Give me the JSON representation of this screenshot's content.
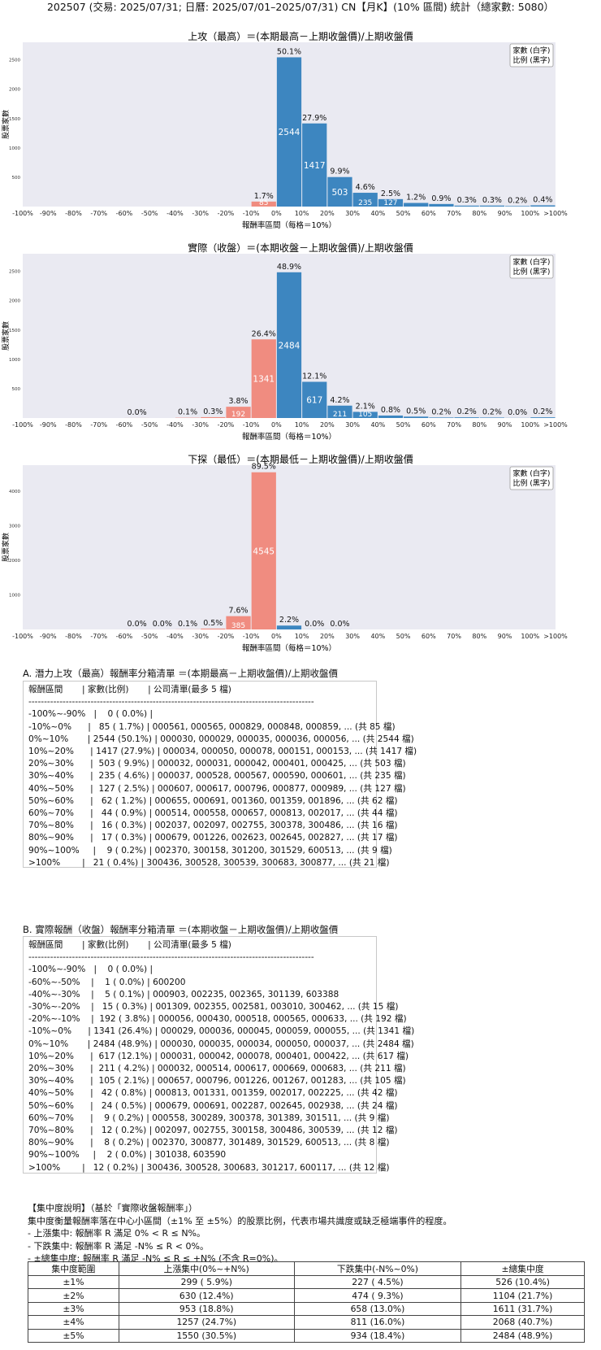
{
  "header": "202507 (交易: 2025/07/31; 日曆: 2025/07/01–2025/07/31) CN【月K】(10% 區間) 統計（總家數: 5080）",
  "bins": [
    "-100%",
    "-90%",
    "-80%",
    "-70%",
    "-60%",
    "-50%",
    "-40%",
    "-30%",
    "-20%",
    "-10%",
    "0%",
    "10%",
    "20%",
    "30%",
    "40%",
    "50%",
    "60%",
    "70%",
    "80%",
    "90%",
    "100%",
    ">100%"
  ],
  "chart_data": [
    {
      "type": "bar",
      "title": "上攻（最高）＝(本期最高－上期收盤價)/上期收盤價",
      "xlabel": "報酬率區間（每格＝10%）",
      "ylabel": "股票家數",
      "ylim": [
        0,
        2800
      ],
      "yticks": [
        500,
        1000,
        1500,
        2000,
        2500
      ],
      "legend": [
        "家數 (白字)",
        "比例 (黑字)"
      ],
      "legend_position": "top-right",
      "grid": false,
      "bars": [
        {
          "range": "-10%~0%",
          "count": 85,
          "pct": "1.7%",
          "color": "#f08c80"
        },
        {
          "range": "0%~10%",
          "count": 2544,
          "pct": "50.1%",
          "color": "#3d86c0"
        },
        {
          "range": "10%~20%",
          "count": 1417,
          "pct": "27.9%",
          "color": "#3d86c0"
        },
        {
          "range": "20%~30%",
          "count": 503,
          "pct": "9.9%",
          "color": "#3d86c0"
        },
        {
          "range": "30%~40%",
          "count": 235,
          "pct": "4.6%",
          "color": "#3d86c0"
        },
        {
          "range": "40%~50%",
          "count": 127,
          "pct": "2.5%",
          "color": "#3d86c0"
        },
        {
          "range": "50%~60%",
          "count": 62,
          "pct": "1.2%",
          "color": "#3d86c0"
        },
        {
          "range": "60%~70%",
          "count": 44,
          "pct": "0.9%",
          "color": "#3d86c0"
        },
        {
          "range": "70%~80%",
          "count": 16,
          "pct": "0.3%",
          "color": "#3d86c0"
        },
        {
          "range": "80%~90%",
          "count": 17,
          "pct": "0.3%",
          "color": "#3d86c0"
        },
        {
          "range": "90%~100%",
          "count": 9,
          "pct": "0.2%",
          "color": "#3d86c0"
        },
        {
          "range": ">100%",
          "count": 21,
          "pct": "0.4%",
          "color": "#3d86c0"
        }
      ]
    },
    {
      "type": "bar",
      "title": "實際（收盤）＝(本期收盤－上期收盤價)/上期收盤價",
      "xlabel": "報酬率區間（每格＝10%）",
      "ylabel": "股票家數",
      "ylim": [
        0,
        2800
      ],
      "yticks": [
        500,
        1000,
        1500,
        2000,
        2500
      ],
      "legend": [
        "家數 (白字)",
        "比例 (黑字)"
      ],
      "legend_position": "top-right",
      "grid": false,
      "bars": [
        {
          "range": "-60%~-50%",
          "count": 1,
          "pct": "0.0%",
          "color": "#f08c80"
        },
        {
          "range": "-40%~-30%",
          "count": 5,
          "pct": "0.1%",
          "color": "#f08c80"
        },
        {
          "range": "-30%~-20%",
          "count": 15,
          "pct": "0.3%",
          "color": "#f08c80"
        },
        {
          "range": "-20%~-10%",
          "count": 192,
          "pct": "3.8%",
          "color": "#f08c80"
        },
        {
          "range": "-10%~0%",
          "count": 1341,
          "pct": "26.4%",
          "color": "#f08c80"
        },
        {
          "range": "0%~10%",
          "count": 2484,
          "pct": "48.9%",
          "color": "#3d86c0"
        },
        {
          "range": "10%~20%",
          "count": 617,
          "pct": "12.1%",
          "color": "#3d86c0"
        },
        {
          "range": "20%~30%",
          "count": 211,
          "pct": "4.2%",
          "color": "#3d86c0"
        },
        {
          "range": "30%~40%",
          "count": 105,
          "pct": "2.1%",
          "color": "#3d86c0"
        },
        {
          "range": "40%~50%",
          "count": 42,
          "pct": "0.8%",
          "color": "#3d86c0"
        },
        {
          "range": "50%~60%",
          "count": 24,
          "pct": "0.5%",
          "color": "#3d86c0"
        },
        {
          "range": "60%~70%",
          "count": 9,
          "pct": "0.2%",
          "color": "#3d86c0"
        },
        {
          "range": "70%~80%",
          "count": 12,
          "pct": "0.2%",
          "color": "#3d86c0"
        },
        {
          "range": "80%~90%",
          "count": 8,
          "pct": "0.2%",
          "color": "#3d86c0"
        },
        {
          "range": "90%~100%",
          "count": 2,
          "pct": "0.0%",
          "color": "#3d86c0"
        },
        {
          "range": ">100%",
          "count": 12,
          "pct": "0.2%",
          "color": "#3d86c0"
        }
      ]
    },
    {
      "type": "bar",
      "title": "下探（最低）＝(本期最低－上期收盤價)/上期收盤價",
      "xlabel": "報酬率區間（每格＝10%）",
      "ylabel": "股票家數",
      "ylim": [
        0,
        4750
      ],
      "yticks": [
        1000,
        2000,
        3000,
        4000
      ],
      "legend": [
        "家數 (白字)",
        "比例 (黑字)"
      ],
      "legend_position": "top-right",
      "grid": false,
      "bars": [
        {
          "range": "-60%~-50%",
          "count": 1,
          "pct": "0.0%",
          "color": "#f08c80"
        },
        {
          "range": "-50%~-40%",
          "count": 1,
          "pct": "0.0%",
          "color": "#f08c80"
        },
        {
          "range": "-40%~-30%",
          "count": 4,
          "pct": "0.1%",
          "color": "#f08c80"
        },
        {
          "range": "-30%~-20%",
          "count": 25,
          "pct": "0.5%",
          "color": "#f08c80"
        },
        {
          "range": "-20%~-10%",
          "count": 385,
          "pct": "7.6%",
          "color": "#f08c80"
        },
        {
          "range": "-10%~0%",
          "count": 4545,
          "pct": "89.5%",
          "color": "#f08c80"
        },
        {
          "range": "0%~10%",
          "count": 112,
          "pct": "2.2%",
          "color": "#3d86c0"
        },
        {
          "range": "10%~20%",
          "count": 2,
          "pct": "0.0%",
          "color": "#3d86c0"
        },
        {
          "range": "20%~30%",
          "count": 1,
          "pct": "0.0%",
          "color": "#3d86c0"
        }
      ]
    }
  ],
  "section_a": {
    "title": "A. 潛力上攻（最高）報酬率分箱清單 ＝(本期最高－上期收盤價)/上期收盤價",
    "lines": [
      "報酬區間       | 家數(比例)       | 公司清單(最多 5 檔)",
      "--------------------------------------------------------------------------------------------",
      "-100%~-90%   |    0 ( 0.0%) |",
      "-10%~0%      |   85 ( 1.7%) | 000561, 000565, 000829, 000848, 000859, ... (共 85 檔)",
      "0%~10%       | 2544 (50.1%) | 000030, 000029, 000035, 000036, 000056, ... (共 2544 檔)",
      "10%~20%      | 1417 (27.9%) | 000034, 000050, 000078, 000151, 000153, ... (共 1417 檔)",
      "20%~30%      |  503 ( 9.9%) | 000032, 000031, 000042, 000401, 000425, ... (共 503 檔)",
      "30%~40%      |  235 ( 4.6%) | 000037, 000528, 000567, 000590, 000601, ... (共 235 檔)",
      "40%~50%      |  127 ( 2.5%) | 000607, 000617, 000796, 000877, 000989, ... (共 127 檔)",
      "50%~60%      |   62 ( 1.2%) | 000655, 000691, 001360, 001359, 001896, ... (共 62 檔)",
      "60%~70%      |   44 ( 0.9%) | 000514, 000558, 000657, 000813, 002017, ... (共 44 檔)",
      "70%~80%      |   16 ( 0.3%) | 002037, 002097, 002755, 300378, 300486, ... (共 16 檔)",
      "80%~90%      |   17 ( 0.3%) | 000679, 001226, 002623, 002645, 002827, ... (共 17 檔)",
      "90%~100%     |    9 ( 0.2%) | 002370, 300158, 301200, 301529, 600513, ... (共 9 檔)",
      ">100%        |   21 ( 0.4%) | 300436, 300528, 300539, 300683, 300877, ... (共 21 檔)"
    ]
  },
  "section_b": {
    "title": "B. 實際報酬（收盤）報酬率分箱清單 ＝(本期收盤－上期收盤價)/上期收盤價",
    "lines": [
      "報酬區間       | 家數(比例)       | 公司清單(最多 5 檔)",
      "--------------------------------------------------------------------------------------------",
      "-100%~-90%   |    0 ( 0.0%) |",
      "-60%~-50%    |    1 ( 0.0%) | 600200",
      "-40%~-30%    |    5 ( 0.1%) | 000903, 002235, 002365, 301139, 603388",
      "-30%~-20%    |   15 ( 0.3%) | 001309, 002355, 002581, 003010, 300462, ... (共 15 檔)",
      "-20%~-10%    |  192 ( 3.8%) | 000056, 000430, 000518, 000565, 000633, ... (共 192 檔)",
      "-10%~0%      | 1341 (26.4%) | 000029, 000036, 000045, 000059, 000055, ... (共 1341 檔)",
      "0%~10%       | 2484 (48.9%) | 000030, 000035, 000034, 000050, 000037, ... (共 2484 檔)",
      "10%~20%      |  617 (12.1%) | 000031, 000042, 000078, 000401, 000422, ... (共 617 檔)",
      "20%~30%      |  211 ( 4.2%) | 000032, 000514, 000617, 000669, 000683, ... (共 211 檔)",
      "30%~40%      |  105 ( 2.1%) | 000657, 000796, 001226, 001267, 001283, ... (共 105 檔)",
      "40%~50%      |   42 ( 0.8%) | 000813, 001331, 001359, 002017, 002225, ... (共 42 檔)",
      "50%~60%      |   24 ( 0.5%) | 000679, 000691, 002287, 002645, 002938, ... (共 24 檔)",
      "60%~70%      |    9 ( 0.2%) | 000558, 300289, 300378, 301389, 301511, ... (共 9 檔)",
      "70%~80%      |   12 ( 0.2%) | 002097, 002755, 300158, 300486, 300539, ... (共 12 檔)",
      "80%~90%      |    8 ( 0.2%) | 002370, 300877, 301489, 301529, 600513, ... (共 8 檔)",
      "90%~100%     |    2 ( 0.0%) | 301038, 603590",
      ">100%        |   12 ( 0.2%) | 300436, 300528, 300683, 301217, 600117, ... (共 12 檔)"
    ]
  },
  "concentration": {
    "lines": [
      "【集中度說明】（基於「實際收盤報酬率」）",
      "集中度衡量報酬率落在中心小區間（±1% 至 ±5%）的股票比例，代表市場共識度或缺乏極端事件的程度。",
      " - 上漲集中: 報酬率 R 滿足 0% < R ≤ N%。",
      " - 下跌集中: 報酬率 R 滿足 -N% ≤ R < 0%。",
      " - ±總集中度: 報酬率 R 滿足 -N% ≤ R ≤ +N% (不含 R=0%)。"
    ],
    "headers": [
      "集中度範圍",
      "上漲集中(0%~+N%)",
      "下跌集中(-N%~0%)",
      "±總集中度"
    ],
    "rows": [
      [
        "±1%",
        "299 ( 5.9%)",
        "227 ( 4.5%)",
        "526 (10.4%)"
      ],
      [
        "±2%",
        "630 (12.4%)",
        "474 ( 9.3%)",
        "1104 (21.7%)"
      ],
      [
        "±3%",
        "953 (18.8%)",
        "658 (13.0%)",
        "1611 (31.7%)"
      ],
      [
        "±4%",
        "1257 (24.7%)",
        "811 (16.0%)",
        "2068 (40.7%)"
      ],
      [
        "±5%",
        "1550 (30.5%)",
        "934 (18.4%)",
        "2484 (48.9%)"
      ]
    ]
  }
}
